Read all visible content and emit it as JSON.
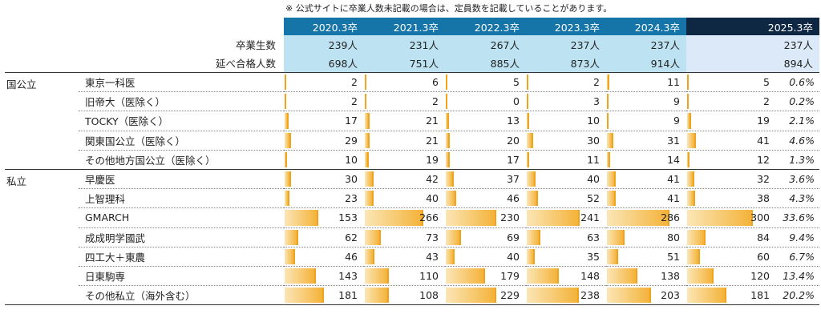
{
  "note": "※ 公式サイトに卒業人数未記載の場合は、定員数を記載していることがあります。",
  "years": [
    "2020.3卒",
    "2021.3卒",
    "2022.3卒",
    "2023.3卒",
    "2024.3卒",
    "2025.3卒"
  ],
  "summary": [
    {
      "label": "卒業生数",
      "values": [
        "239人",
        "231人",
        "267人",
        "237人",
        "237人",
        "237人"
      ]
    },
    {
      "label": "延べ合格人数",
      "values": [
        "698人",
        "751人",
        "885人",
        "873人",
        "914人",
        "894人"
      ]
    }
  ],
  "groups": [
    {
      "name": "国公立",
      "rows": [
        {
          "name": "東京一科医",
          "values": [
            2,
            6,
            5,
            2,
            11,
            5
          ],
          "pct": "0.6%"
        },
        {
          "name": "旧帝大（医除く）",
          "values": [
            2,
            2,
            0,
            3,
            9,
            2
          ],
          "pct": "0.2%"
        },
        {
          "name": "TOCKY（医除く）",
          "values": [
            17,
            21,
            13,
            10,
            9,
            19
          ],
          "pct": "2.1%"
        },
        {
          "name": "関東国公立（医除く）",
          "values": [
            29,
            21,
            20,
            30,
            31,
            41
          ],
          "pct": "4.6%"
        },
        {
          "name": "その他地方国公立（医除く）",
          "values": [
            10,
            19,
            17,
            11,
            14,
            12
          ],
          "pct": "1.3%"
        }
      ]
    },
    {
      "name": "私立",
      "rows": [
        {
          "name": "早慶医",
          "values": [
            30,
            42,
            37,
            40,
            41,
            32
          ],
          "pct": "3.6%"
        },
        {
          "name": "上智理科",
          "values": [
            23,
            40,
            46,
            52,
            41,
            38
          ],
          "pct": "4.3%"
        },
        {
          "name": "GMARCH",
          "values": [
            153,
            266,
            230,
            241,
            286,
            300
          ],
          "pct": "33.6%"
        },
        {
          "name": "成成明学國武",
          "values": [
            62,
            73,
            69,
            63,
            80,
            84
          ],
          "pct": "9.4%"
        },
        {
          "name": "四工大＋東農",
          "values": [
            46,
            43,
            40,
            35,
            51,
            60
          ],
          "pct": "6.7%"
        },
        {
          "name": "日東駒専",
          "values": [
            143,
            110,
            179,
            148,
            138,
            120
          ],
          "pct": "13.4%"
        },
        {
          "name": "その他私立（海外含む）",
          "values": [
            181,
            108,
            229,
            238,
            203,
            181
          ],
          "pct": "20.2%"
        }
      ]
    }
  ],
  "colors": {
    "header": "#1675a8",
    "header_last": "#0e2844",
    "summary_bg": "#bde3f3",
    "bar": "#f4b33a"
  },
  "bar_scale_max": 300
}
